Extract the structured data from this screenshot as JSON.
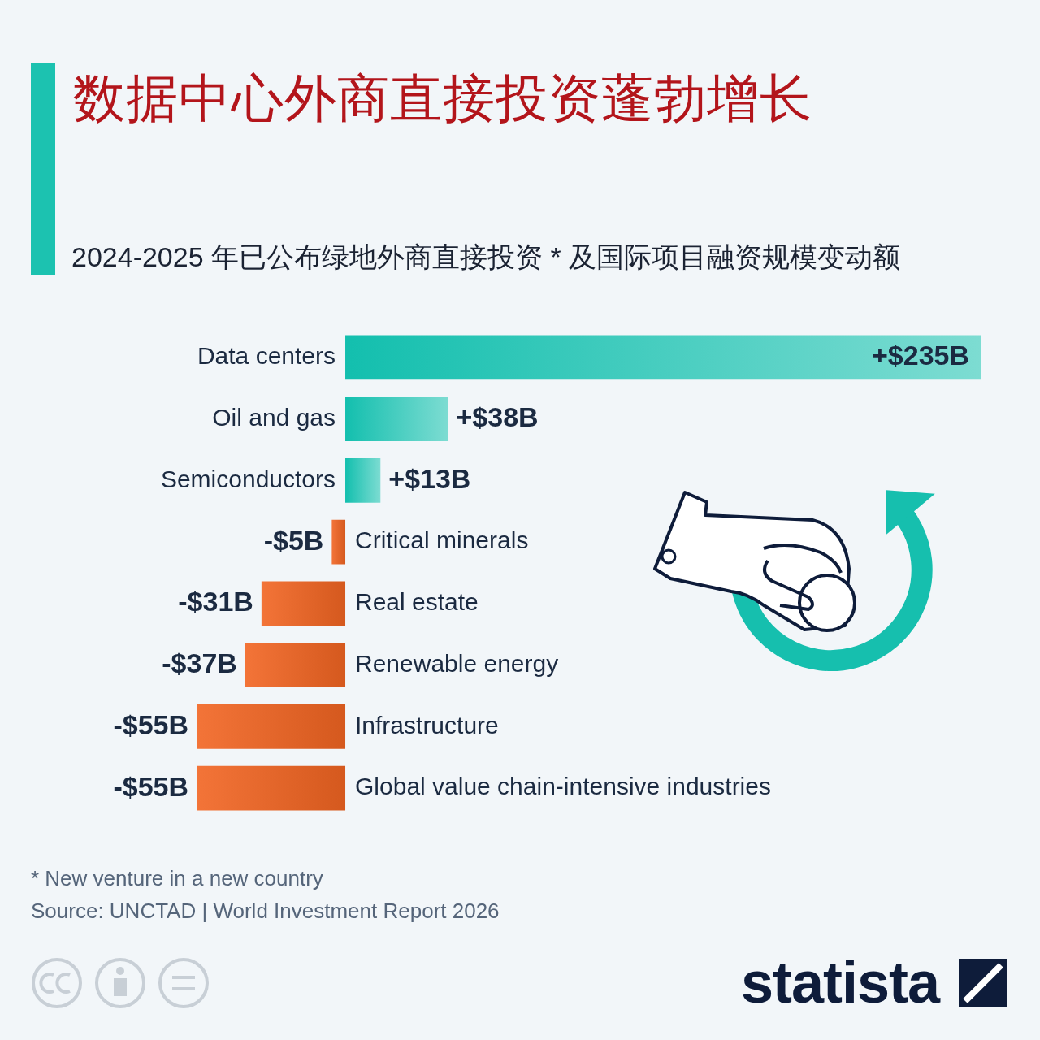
{
  "chart_data": {
    "type": "bar",
    "orientation": "horizontal",
    "title": "数据中心外商直接投资蓬勃增长",
    "subtitle": "2024-2025 年已公布绿地外商直接投资 * 及国际项目融资规模变动额",
    "categories": [
      "Data centers",
      "Oil and gas",
      "Semiconductors",
      "Critical minerals",
      "Real estate",
      "Renewable energy",
      "Infrastructure",
      "Global value chain-intensive industries"
    ],
    "values": [
      235,
      38,
      13,
      -5,
      -31,
      -37,
      -55,
      -55
    ],
    "value_labels": [
      "+$235B",
      "+$38B",
      "+$13B",
      "-$5B",
      "-$31B",
      "-$37B",
      "-$55B",
      "-$55B"
    ],
    "colors": [
      "#13bfae",
      "#13bfae",
      "#13bfae",
      "#f26522",
      "#f26522",
      "#f26522",
      "#f26522",
      "#f26522"
    ],
    "xlim": [
      -55,
      235
    ],
    "data_labels": true,
    "tick_labels": false,
    "grid": false,
    "footnote": "* New venture in a new country",
    "source": "Source: UNCTAD | World Investment Report 2026",
    "logo": "statista"
  }
}
